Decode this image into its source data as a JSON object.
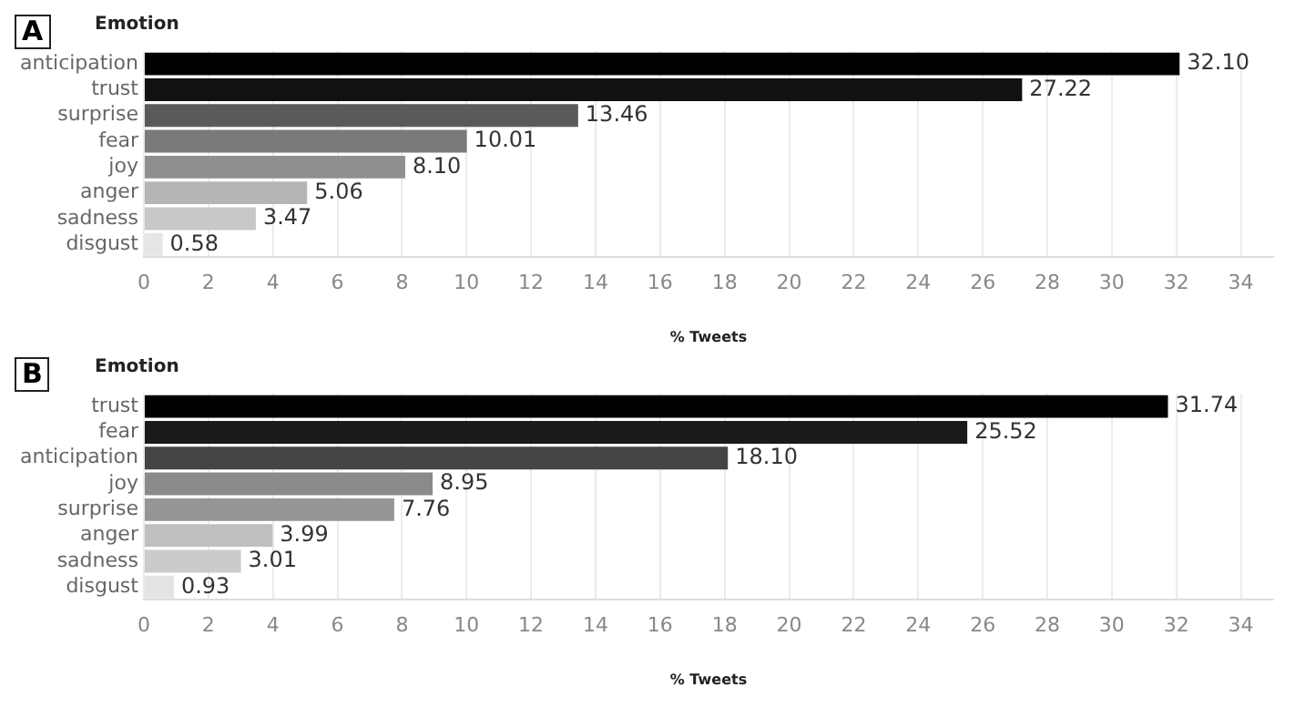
{
  "chart_data": [
    {
      "type": "bar",
      "title": "A",
      "ylabel": "Emotion",
      "xlabel": "% Tweets",
      "orientation": "horizontal",
      "categories": [
        "anticipation",
        "trust",
        "surprise",
        "fear",
        "joy",
        "anger",
        "sadness",
        "disgust"
      ],
      "values": [
        32.1,
        27.22,
        13.46,
        10.01,
        8.1,
        5.06,
        3.47,
        0.58
      ],
      "value_labels": [
        "32.10",
        "27.22",
        "13.46",
        "10.01",
        "8.10",
        "5.06",
        "3.47",
        "0.58"
      ],
      "colors": [
        "#000000",
        "#111111",
        "#5a5a5a",
        "#7a7a7a",
        "#8f8f8f",
        "#b5b5b5",
        "#c8c8c8",
        "#e6e6e6"
      ],
      "xlim": [
        0,
        35
      ],
      "xticks": [
        0,
        2,
        4,
        6,
        8,
        10,
        12,
        14,
        16,
        18,
        20,
        22,
        24,
        26,
        28,
        30,
        32,
        34
      ],
      "grid": "x",
      "legend": false
    },
    {
      "type": "bar",
      "title": "B",
      "ylabel": "Emotion",
      "xlabel": "% Tweets",
      "orientation": "horizontal",
      "categories": [
        "trust",
        "fear",
        "anticipation",
        "joy",
        "surprise",
        "anger",
        "sadness",
        "disgust"
      ],
      "values": [
        31.74,
        25.52,
        18.1,
        8.95,
        7.76,
        3.99,
        3.01,
        0.93
      ],
      "value_labels": [
        "31.74",
        "25.52",
        "18.10",
        "8.95",
        "7.76",
        "3.99",
        "3.01",
        "0.93"
      ],
      "colors": [
        "#000000",
        "#1a1a1a",
        "#444444",
        "#8a8a8a",
        "#959595",
        "#bfbfbf",
        "#cbcbcb",
        "#e4e4e4"
      ],
      "xlim": [
        0,
        35
      ],
      "xticks": [
        0,
        2,
        4,
        6,
        8,
        10,
        12,
        14,
        16,
        18,
        20,
        22,
        24,
        26,
        28,
        30,
        32,
        34
      ],
      "grid": "x",
      "legend": false
    }
  ]
}
